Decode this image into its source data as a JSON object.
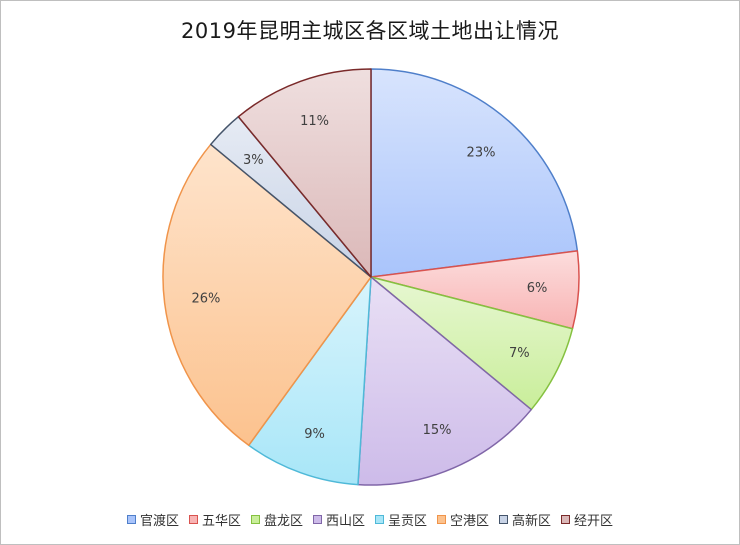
{
  "chart_data": {
    "type": "pie",
    "title": "2019年昆明主城区各区域土地出让情况",
    "legend_position": "bottom",
    "categories": [
      "官渡区",
      "五华区",
      "盘龙区",
      "西山区",
      "呈贡区",
      "空港区",
      "高新区",
      "经开区"
    ],
    "values": [
      23,
      6,
      7,
      15,
      9,
      26,
      3,
      11
    ],
    "value_labels": [
      "23%",
      "6%",
      "7%",
      "15%",
      "9%",
      "26%",
      "3%",
      "11%"
    ],
    "colors": [
      "#a9c4fb",
      "#f8b4b4",
      "#c9ee9a",
      "#cdbbe9",
      "#a8e6f8",
      "#fcc28e",
      "#c8d3e6",
      "#dbb8b8"
    ],
    "edge_colors": [
      "#4f7fca",
      "#d9534f",
      "#85c140",
      "#8066a8",
      "#4fb9d8",
      "#f0944a",
      "#44546a",
      "#7a2a2a"
    ]
  }
}
